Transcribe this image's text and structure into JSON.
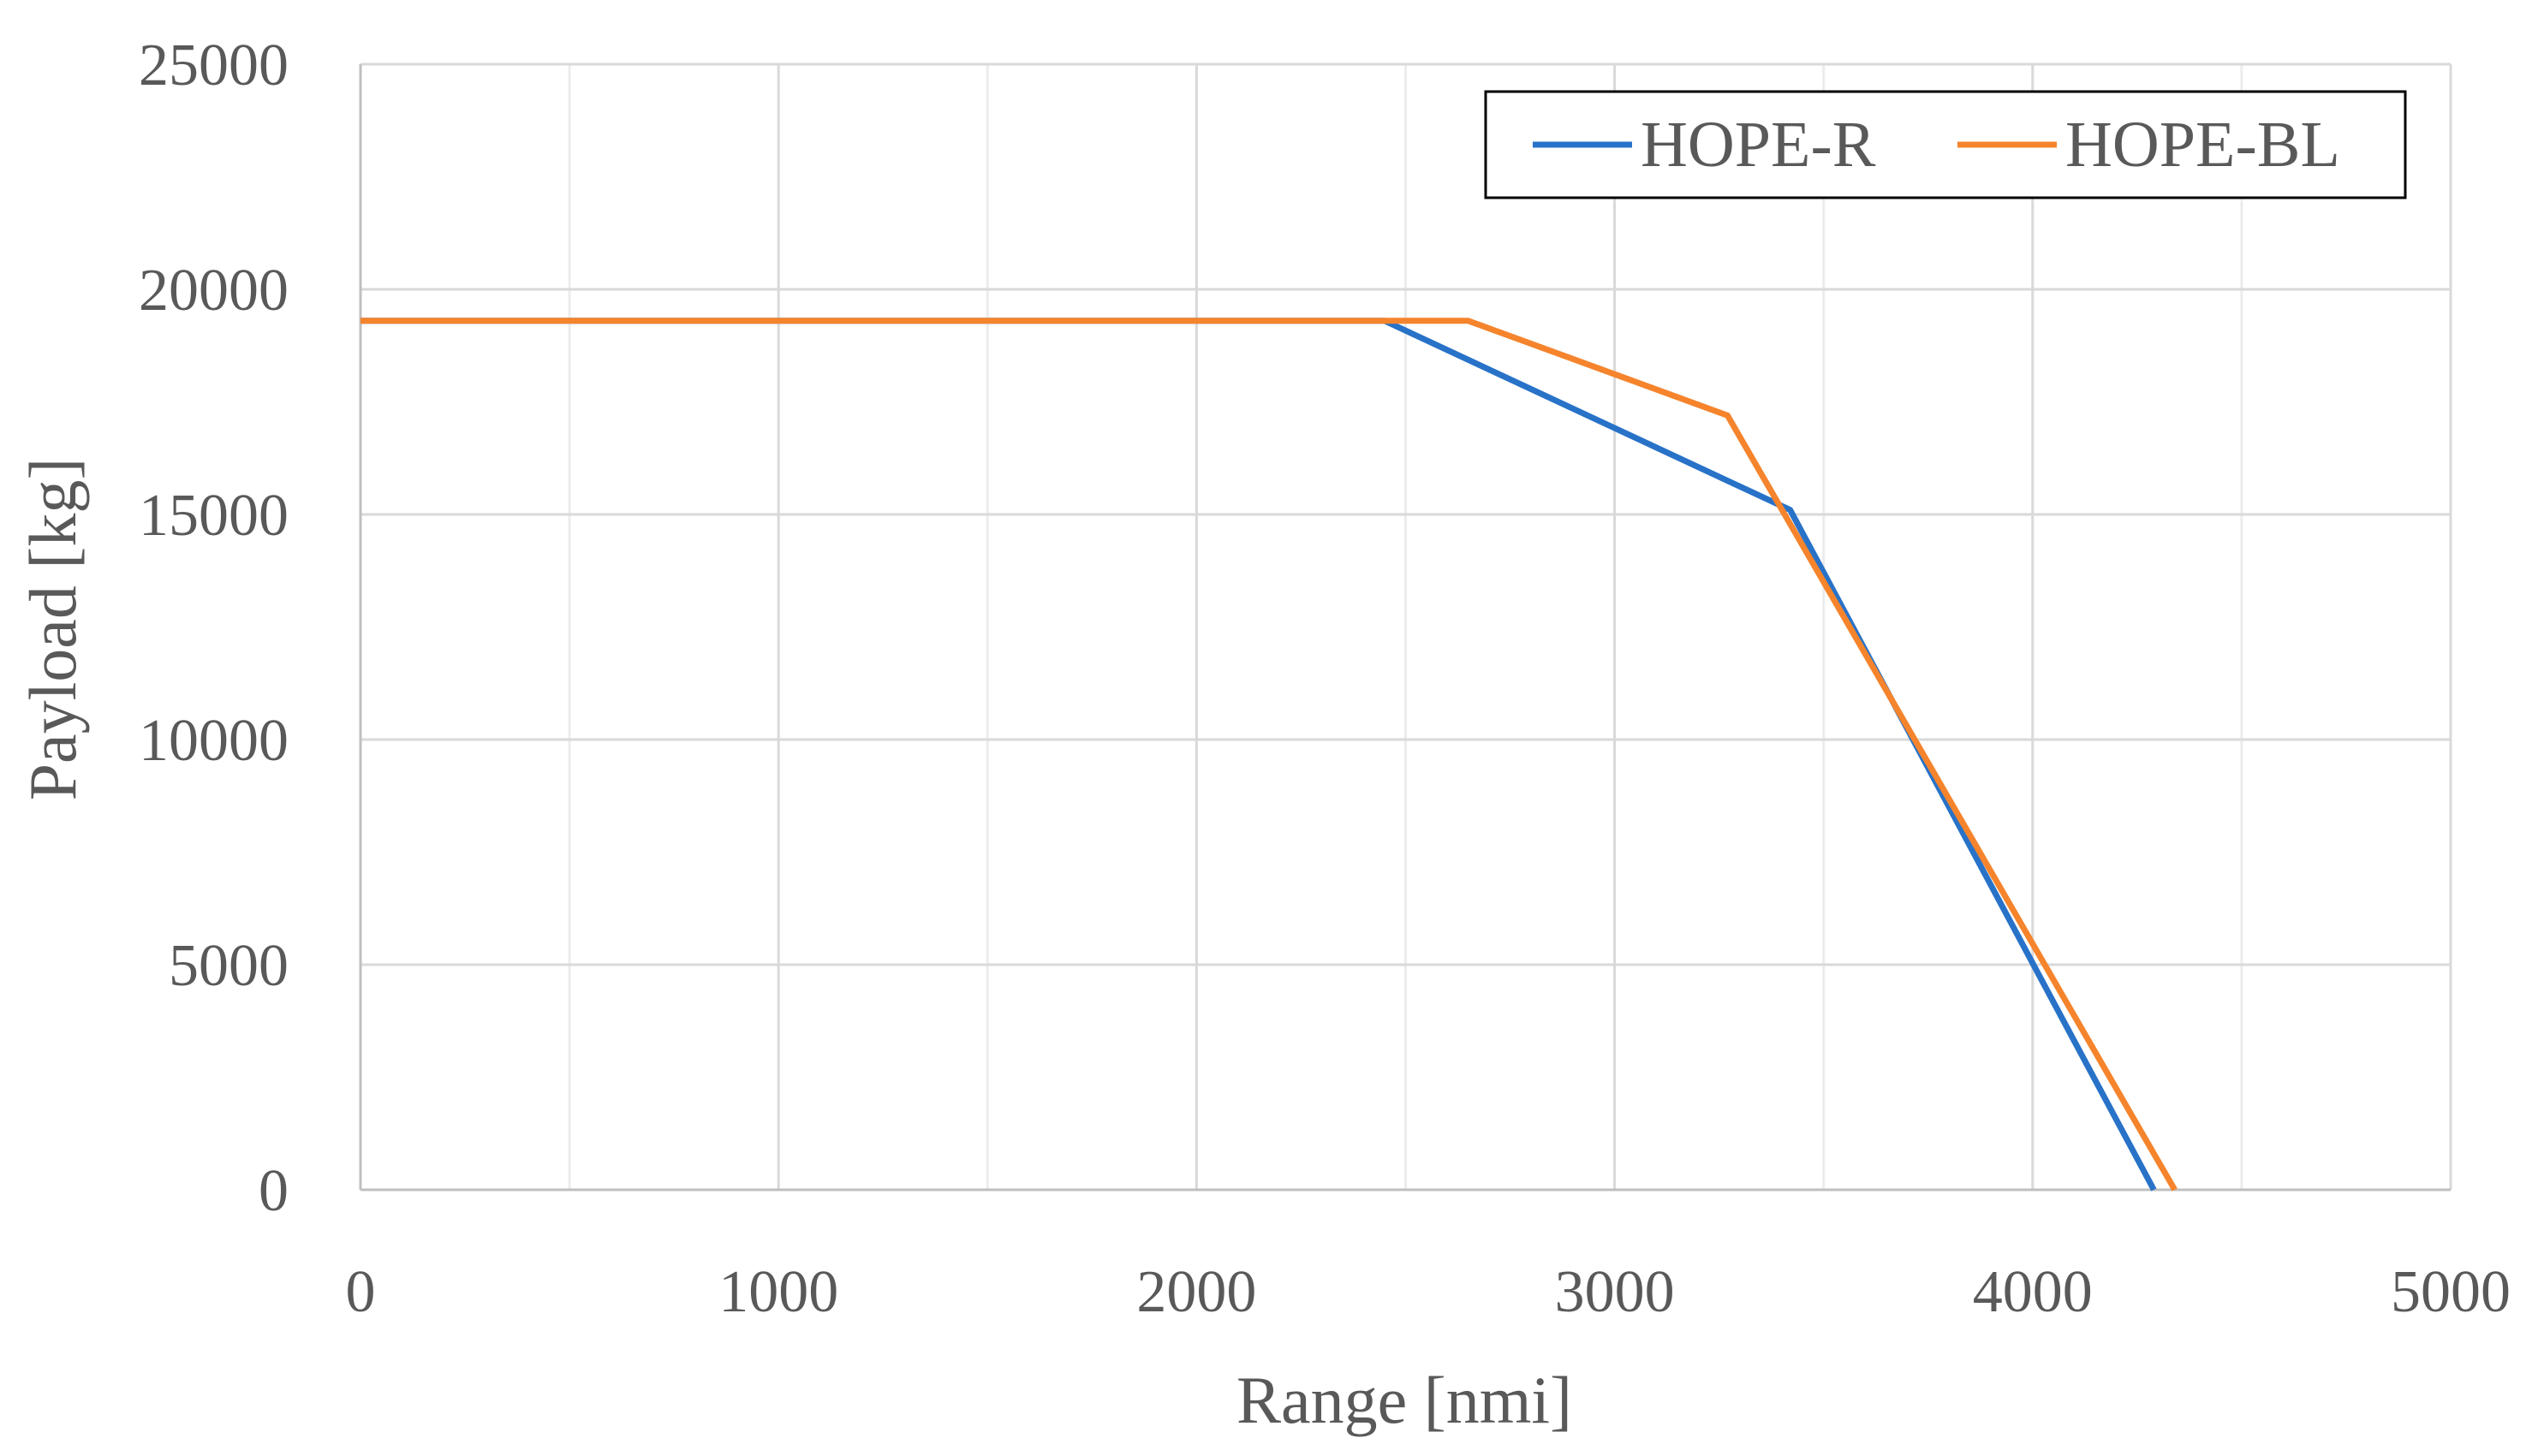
{
  "chart_data": {
    "type": "line",
    "title": "",
    "xlabel": "Range [nmi]",
    "ylabel": "Payload [kg]",
    "xlim": [
      0,
      5000
    ],
    "ylim": [
      0,
      25000
    ],
    "x_major_ticks": [
      0,
      1000,
      2000,
      3000,
      4000,
      5000
    ],
    "x_tick_labels": [
      "0",
      "1000",
      "2000",
      "3000",
      "4000",
      "5000"
    ],
    "x_minor_ticks": [
      500,
      1500,
      2500,
      3500,
      4500
    ],
    "y_major_ticks": [
      0,
      5000,
      10000,
      15000,
      20000,
      25000
    ],
    "y_tick_labels": [
      "0",
      "5000",
      "10000",
      "15000",
      "20000",
      "25000"
    ],
    "grid": true,
    "legend_position": "top-right",
    "series": [
      {
        "name": "HOPE-R",
        "color": "#2872c8",
        "x": [
          0,
          2450,
          3420,
          4290
        ],
        "y": [
          19300,
          19300,
          15100,
          0
        ]
      },
      {
        "name": "HOPE-BL",
        "color": "#f5842c",
        "x": [
          0,
          2650,
          3270,
          4340
        ],
        "y": [
          19300,
          19300,
          17200,
          0
        ]
      }
    ]
  }
}
